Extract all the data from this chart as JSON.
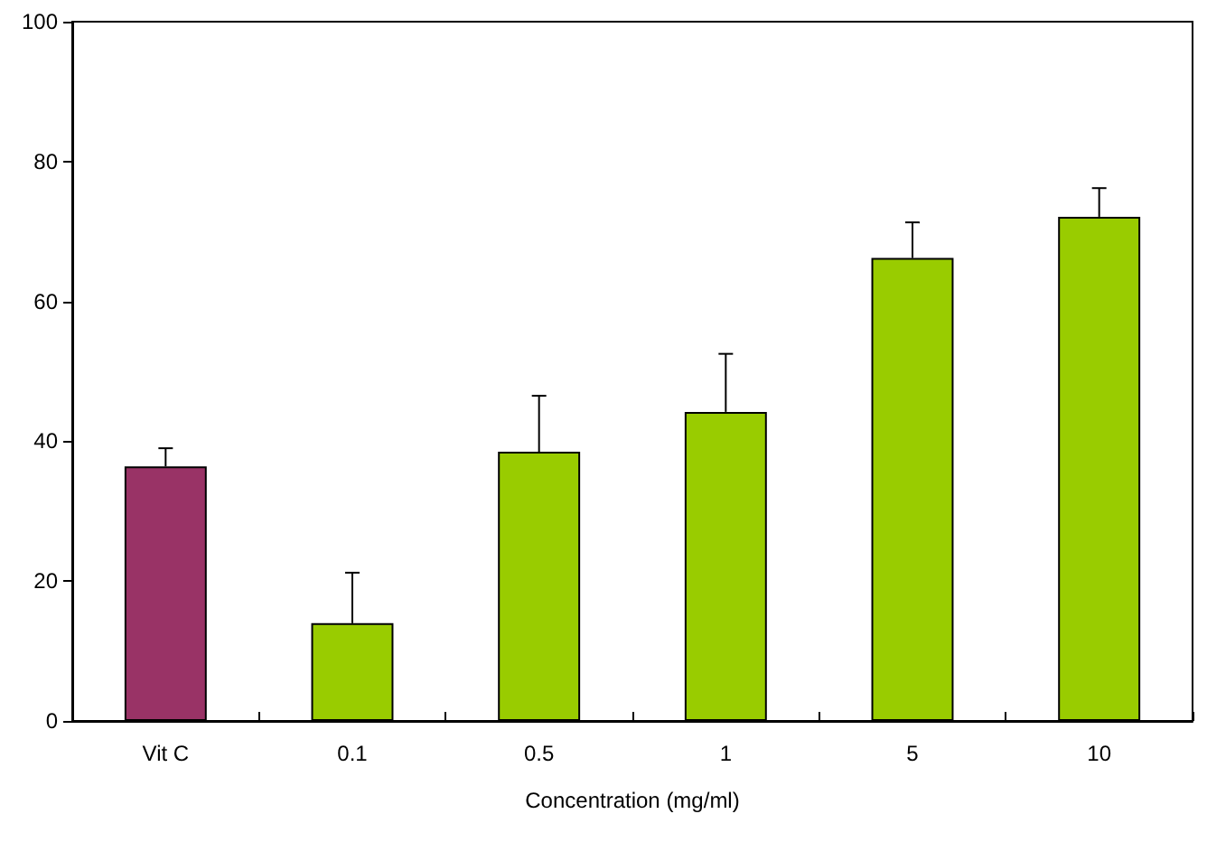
{
  "chart_data": {
    "type": "bar",
    "xlabel": "Concentration (mg/ml)",
    "categories": [
      "Vit C",
      "0.1",
      "0.5",
      "1",
      "5",
      "10"
    ],
    "values": [
      36.4,
      14.0,
      38.5,
      44.2,
      66.2,
      72.1
    ],
    "colors": [
      "#993366",
      "#99cc00",
      "#99cc00",
      "#99cc00",
      "#99cc00",
      "#99cc00"
    ],
    "errors": [
      [
        36.4,
        39.0
      ],
      [
        14.0,
        21.2
      ],
      [
        38.5,
        46.5
      ],
      [
        44.2,
        52.5
      ],
      [
        66.2,
        71.3
      ],
      [
        72.1,
        76.2
      ]
    ],
    "ylim": [
      0,
      100
    ],
    "yticks": [
      0,
      20,
      40,
      60,
      80,
      100
    ],
    "grid": false
  }
}
